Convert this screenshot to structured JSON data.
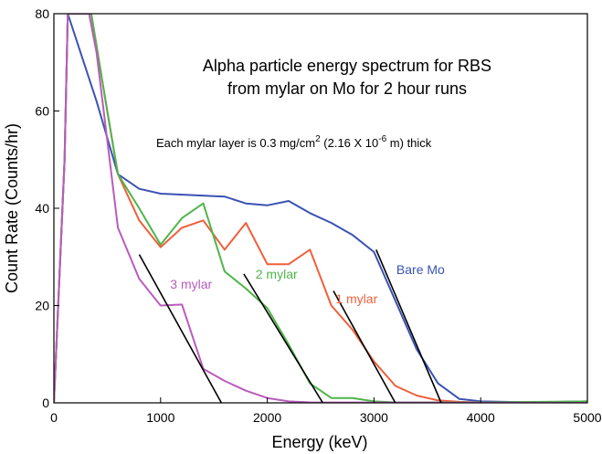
{
  "chart_data": {
    "type": "line",
    "title": "Alpha particle energy spectrum for RBS",
    "subtitle": "from mylar on Mo for 2 hour runs",
    "note": {
      "prefix": "Each mylar layer is 0.3 mg/cm",
      "sup1": "2",
      "middle": " (2.16 X 10",
      "sup2": "-6",
      "suffix": " m) thick"
    },
    "xlabel": "Energy (keV)",
    "ylabel": "Count Rate (Counts/hr)",
    "xlim": [
      0,
      5000
    ],
    "ylim": [
      0,
      80
    ],
    "xticks": [
      0,
      1000,
      2000,
      3000,
      4000,
      5000
    ],
    "yticks": [
      0,
      20,
      40,
      60,
      80
    ],
    "grid": false,
    "series": [
      {
        "name": "Bare Mo",
        "color": "#3a52b4",
        "points": [
          [
            0,
            0
          ],
          [
            100,
            50
          ],
          [
            130,
            80
          ],
          [
            400,
            62
          ],
          [
            600,
            47
          ],
          [
            800,
            44
          ],
          [
            1000,
            43
          ],
          [
            1600,
            42.4
          ],
          [
            1800,
            41
          ],
          [
            2000,
            40.6
          ],
          [
            2200,
            41.5
          ],
          [
            2400,
            39
          ],
          [
            2600,
            37
          ],
          [
            2800,
            34.5
          ],
          [
            3000,
            31
          ],
          [
            3200,
            21
          ],
          [
            3400,
            11
          ],
          [
            3600,
            4
          ],
          [
            3800,
            0.8
          ],
          [
            4000,
            0.3
          ],
          [
            4500,
            0.1
          ],
          [
            5000,
            0.3
          ]
        ]
      },
      {
        "name": "1 mylar",
        "color": "#ee5f3c",
        "points": [
          [
            0,
            0
          ],
          [
            100,
            50
          ],
          [
            130,
            80
          ],
          [
            350,
            80
          ],
          [
            500,
            60
          ],
          [
            600,
            47
          ],
          [
            800,
            37.5
          ],
          [
            1000,
            32
          ],
          [
            1200,
            36
          ],
          [
            1400,
            37.5
          ],
          [
            1600,
            31.5
          ],
          [
            1800,
            37
          ],
          [
            2000,
            28.5
          ],
          [
            2200,
            28.5
          ],
          [
            2400,
            31.5
          ],
          [
            2600,
            20
          ],
          [
            2800,
            15
          ],
          [
            3000,
            8.5
          ],
          [
            3200,
            3.5
          ],
          [
            3400,
            1.5
          ],
          [
            3600,
            0.5
          ],
          [
            3800,
            0.2
          ],
          [
            4000,
            0.1
          ],
          [
            5000,
            0.1
          ]
        ]
      },
      {
        "name": "2 mylar",
        "color": "#4eb54a",
        "points": [
          [
            0,
            0
          ],
          [
            100,
            50
          ],
          [
            130,
            80
          ],
          [
            350,
            80
          ],
          [
            500,
            60
          ],
          [
            600,
            47
          ],
          [
            800,
            40
          ],
          [
            1000,
            32.5
          ],
          [
            1200,
            38
          ],
          [
            1400,
            41
          ],
          [
            1600,
            27
          ],
          [
            1800,
            23.5
          ],
          [
            2000,
            19.5
          ],
          [
            2200,
            12
          ],
          [
            2400,
            4
          ],
          [
            2600,
            1
          ],
          [
            2800,
            1
          ],
          [
            3000,
            0.3
          ],
          [
            3200,
            0.1
          ],
          [
            4000,
            0.1
          ],
          [
            5000,
            0.3
          ]
        ]
      },
      {
        "name": "3 mylar",
        "color": "#b95cbc",
        "points": [
          [
            0,
            0
          ],
          [
            100,
            50
          ],
          [
            130,
            80
          ],
          [
            330,
            80
          ],
          [
            400,
            72
          ],
          [
            600,
            36
          ],
          [
            800,
            25.5
          ],
          [
            1000,
            20
          ],
          [
            1200,
            20.2
          ],
          [
            1400,
            7
          ],
          [
            1600,
            4.5
          ],
          [
            1800,
            2.5
          ],
          [
            2000,
            1
          ],
          [
            2200,
            0.3
          ],
          [
            2400,
            0.1
          ],
          [
            5000,
            0
          ]
        ]
      }
    ],
    "fit_lines": [
      {
        "from": [
          800,
          30.5
        ],
        "to": [
          1570,
          0
        ]
      },
      {
        "from": [
          1780,
          26.5
        ],
        "to": [
          2520,
          0
        ]
      },
      {
        "from": [
          2620,
          23
        ],
        "to": [
          3200,
          0
        ]
      },
      {
        "from": [
          3020,
          31.5
        ],
        "to": [
          3630,
          0
        ]
      }
    ],
    "labels": [
      {
        "text": "3 mylar",
        "color": "#b95cbc",
        "x": 1090,
        "y": 23.5
      },
      {
        "text": "2 mylar",
        "color": "#4eb54a",
        "x": 1890,
        "y": 25.5
      },
      {
        "text": "1 mylar",
        "color": "#ee5f3c",
        "x": 2640,
        "y": 20.5
      },
      {
        "text": "Bare Mo",
        "color": "#3a52b4",
        "x": 3210,
        "y": 26.5
      }
    ]
  }
}
